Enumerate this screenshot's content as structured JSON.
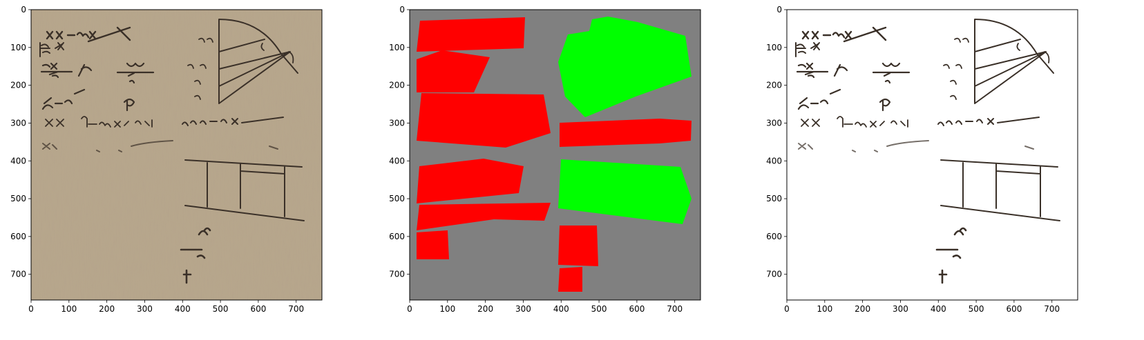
{
  "figure": {
    "panels": [
      {
        "id": "panel-original",
        "kind": "manuscript-photo",
        "x_ticks": [
          "0",
          "100",
          "200",
          "300",
          "400",
          "500",
          "600",
          "700"
        ],
        "y_ticks": [
          "0",
          "100",
          "200",
          "300",
          "400",
          "500",
          "600",
          "700"
        ]
      },
      {
        "id": "panel-mask",
        "kind": "segmentation-mask",
        "x_ticks": [
          "0",
          "100",
          "200",
          "300",
          "400",
          "500",
          "600",
          "700"
        ],
        "y_ticks": [
          "0",
          "100",
          "200",
          "300",
          "400",
          "500",
          "600",
          "700"
        ]
      },
      {
        "id": "panel-binary",
        "kind": "binarized-ink",
        "x_ticks": [
          "0",
          "100",
          "200",
          "300",
          "400",
          "500",
          "600",
          "700"
        ],
        "y_ticks": [
          "0",
          "100",
          "200",
          "300",
          "400",
          "500",
          "600",
          "700"
        ]
      }
    ],
    "colors": {
      "parchment": "#b8a78c",
      "ink": "#3a3028",
      "mask_background": "#808080",
      "mask_red": "#ff0000",
      "mask_green": "#00ff00",
      "binary_ink": "#000000",
      "binary_background": "#ffffff"
    },
    "image_extent": [
      0,
      768
    ]
  }
}
